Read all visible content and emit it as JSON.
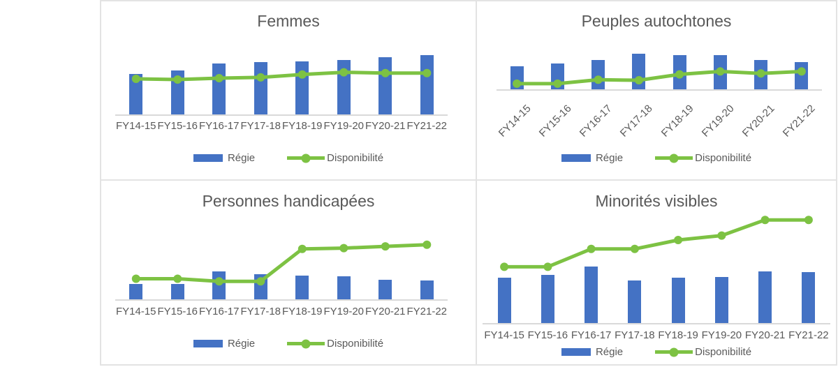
{
  "theme": {
    "bar_color": "#4472C4",
    "line_color": "#7DC243",
    "text_color": "#595959",
    "panel_border_color": "#E3E3E3",
    "axis_line_color": "#D9D9D9",
    "background": "#FFFFFF"
  },
  "chart_data": [
    {
      "type": "bar",
      "title": "Femmes",
      "categories": [
        "FY14-15",
        "FY15-16",
        "FY16-17",
        "FY17-18",
        "FY18-19",
        "FY19-20",
        "FY20-21",
        "FY21-22"
      ],
      "series": [
        {
          "name": "Régie",
          "kind": "bar",
          "values": [
            57,
            62,
            71,
            73,
            74,
            76,
            80,
            83
          ]
        },
        {
          "name": "Disponibilité",
          "kind": "line",
          "values": [
            50,
            49,
            51,
            52,
            56,
            59,
            58,
            58
          ]
        }
      ],
      "ylim": [
        0,
        100
      ],
      "value_axis_visible": false,
      "grid": false,
      "legend_position": "bottom",
      "x_label_rotation": 0
    },
    {
      "type": "bar",
      "title": "Peuples autochtones",
      "categories": [
        "FY14-15",
        "FY15-16",
        "FY16-17",
        "FY17-18",
        "FY18-19",
        "FY19-20",
        "FY20-21",
        "FY21-22"
      ],
      "series": [
        {
          "name": "Régie",
          "kind": "bar",
          "values": [
            49,
            54,
            62,
            74,
            71,
            71,
            62,
            57
          ]
        },
        {
          "name": "Disponibilité",
          "kind": "line",
          "values": [
            13,
            13,
            21,
            20,
            32,
            38,
            34,
            38
          ]
        }
      ],
      "ylim": [
        0,
        100
      ],
      "value_axis_visible": false,
      "grid": false,
      "legend_position": "bottom",
      "x_label_rotation": -45
    },
    {
      "type": "bar",
      "title": "Personnes handicapées",
      "categories": [
        "FY14-15",
        "FY15-16",
        "FY16-17",
        "FY17-18",
        "FY18-19",
        "FY19-20",
        "FY20-21",
        "FY21-22"
      ],
      "series": [
        {
          "name": "Régie",
          "kind": "bar",
          "values": [
            19,
            19,
            34,
            30,
            29,
            28,
            24,
            23
          ]
        },
        {
          "name": "Disponibilité",
          "kind": "line",
          "values": [
            25,
            25,
            22,
            22,
            60,
            61,
            63,
            65
          ]
        }
      ],
      "ylim": [
        0,
        100
      ],
      "value_axis_visible": false,
      "grid": false,
      "legend_position": "bottom",
      "x_label_rotation": 0
    },
    {
      "type": "bar",
      "title": "Minorités visibles",
      "categories": [
        "FY14-15",
        "FY15-16",
        "FY16-17",
        "FY17-18",
        "FY18-19",
        "FY19-20",
        "FY20-21",
        "FY21-22"
      ],
      "series": [
        {
          "name": "Régie",
          "kind": "bar",
          "values": [
            41,
            44,
            51,
            39,
            41,
            42,
            47,
            46
          ]
        },
        {
          "name": "Disponibilité",
          "kind": "line",
          "values": [
            51,
            51,
            67,
            67,
            75,
            79,
            93,
            93
          ]
        }
      ],
      "ylim": [
        0,
        100
      ],
      "value_axis_visible": false,
      "grid": false,
      "legend_position": "bottom",
      "x_label_rotation": -45,
      "x_label_rotation_note": 0
    }
  ]
}
